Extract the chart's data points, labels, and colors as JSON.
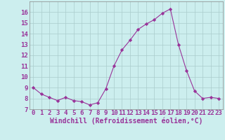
{
  "x": [
    0,
    1,
    2,
    3,
    4,
    5,
    6,
    7,
    8,
    9,
    10,
    11,
    12,
    13,
    14,
    15,
    16,
    17,
    18,
    19,
    20,
    21,
    22,
    23
  ],
  "y": [
    9.0,
    8.4,
    8.1,
    7.8,
    8.1,
    7.8,
    7.7,
    7.4,
    7.6,
    8.9,
    11.0,
    12.5,
    13.4,
    14.4,
    14.9,
    15.3,
    15.9,
    16.3,
    13.0,
    10.6,
    8.7,
    8.0,
    8.1,
    8.0
  ],
  "line_color": "#993399",
  "marker_color": "#993399",
  "bg_color": "#cceeee",
  "grid_color": "#aacccc",
  "xlabel": "Windchill (Refroidissement éolien,°C)",
  "xlim": [
    -0.5,
    23.5
  ],
  "ylim": [
    7,
    17
  ],
  "yticks": [
    7,
    8,
    9,
    10,
    11,
    12,
    13,
    14,
    15,
    16
  ],
  "xticks": [
    0,
    1,
    2,
    3,
    4,
    5,
    6,
    7,
    8,
    9,
    10,
    11,
    12,
    13,
    14,
    15,
    16,
    17,
    18,
    19,
    20,
    21,
    22,
    23
  ],
  "font_color": "#993399",
  "tick_font_size": 6.5,
  "label_font_size": 7.0,
  "spine_color": "#888888"
}
